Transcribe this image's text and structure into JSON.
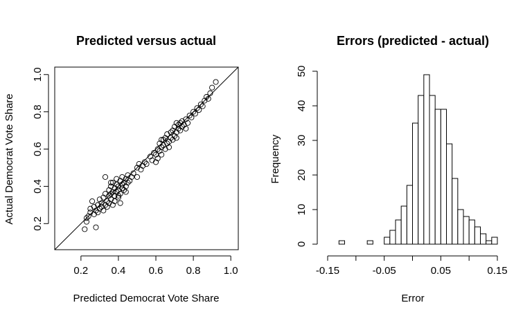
{
  "chart_data": [
    {
      "type": "scatter",
      "title": "Predicted versus actual",
      "xlabel": "Predicted Democrat Vote Share",
      "ylabel": "Actual Democrat Vote Share",
      "xlim": [
        0.06,
        1.04
      ],
      "ylim": [
        0.06,
        1.04
      ],
      "xticks": [
        "0.2",
        "0.4",
        "0.6",
        "0.8",
        "1.0"
      ],
      "yticks": [
        "0.2",
        "0.4",
        "0.6",
        "0.8",
        "1.0"
      ],
      "reference_line": "y = x",
      "points": [
        [
          0.22,
          0.17
        ],
        [
          0.23,
          0.21
        ],
        [
          0.23,
          0.23
        ],
        [
          0.24,
          0.24
        ],
        [
          0.25,
          0.26
        ],
        [
          0.25,
          0.28
        ],
        [
          0.26,
          0.32
        ],
        [
          0.27,
          0.25
        ],
        [
          0.27,
          0.29
        ],
        [
          0.28,
          0.18
        ],
        [
          0.28,
          0.27
        ],
        [
          0.29,
          0.3
        ],
        [
          0.29,
          0.26
        ],
        [
          0.3,
          0.28
        ],
        [
          0.3,
          0.33
        ],
        [
          0.31,
          0.29
        ],
        [
          0.31,
          0.31
        ],
        [
          0.32,
          0.34
        ],
        [
          0.32,
          0.27
        ],
        [
          0.33,
          0.45
        ],
        [
          0.33,
          0.3
        ],
        [
          0.33,
          0.36
        ],
        [
          0.34,
          0.32
        ],
        [
          0.34,
          0.29
        ],
        [
          0.35,
          0.35
        ],
        [
          0.35,
          0.38
        ],
        [
          0.35,
          0.31
        ],
        [
          0.36,
          0.33
        ],
        [
          0.36,
          0.4
        ],
        [
          0.36,
          0.36
        ],
        [
          0.37,
          0.3
        ],
        [
          0.37,
          0.37
        ],
        [
          0.37,
          0.42
        ],
        [
          0.38,
          0.35
        ],
        [
          0.38,
          0.39
        ],
        [
          0.38,
          0.32
        ],
        [
          0.39,
          0.41
        ],
        [
          0.39,
          0.37
        ],
        [
          0.39,
          0.44
        ],
        [
          0.4,
          0.34
        ],
        [
          0.4,
          0.4
        ],
        [
          0.4,
          0.38
        ],
        [
          0.41,
          0.43
        ],
        [
          0.41,
          0.36
        ],
        [
          0.41,
          0.31
        ],
        [
          0.42,
          0.41
        ],
        [
          0.42,
          0.39
        ],
        [
          0.42,
          0.45
        ],
        [
          0.43,
          0.42
        ],
        [
          0.43,
          0.38
        ],
        [
          0.44,
          0.44
        ],
        [
          0.44,
          0.4
        ],
        [
          0.45,
          0.46
        ],
        [
          0.45,
          0.42
        ],
        [
          0.46,
          0.43
        ],
        [
          0.47,
          0.45
        ],
        [
          0.48,
          0.47
        ],
        [
          0.5,
          0.5
        ],
        [
          0.5,
          0.45
        ],
        [
          0.51,
          0.52
        ],
        [
          0.52,
          0.49
        ],
        [
          0.53,
          0.51
        ],
        [
          0.54,
          0.53
        ],
        [
          0.55,
          0.52
        ],
        [
          0.57,
          0.56
        ],
        [
          0.59,
          0.58
        ],
        [
          0.6,
          0.57
        ],
        [
          0.61,
          0.6
        ],
        [
          0.61,
          0.55
        ],
        [
          0.62,
          0.63
        ],
        [
          0.62,
          0.59
        ],
        [
          0.63,
          0.61
        ],
        [
          0.63,
          0.57
        ],
        [
          0.64,
          0.65
        ],
        [
          0.64,
          0.62
        ],
        [
          0.65,
          0.6
        ],
        [
          0.65,
          0.66
        ],
        [
          0.66,
          0.63
        ],
        [
          0.66,
          0.68
        ],
        [
          0.67,
          0.64
        ],
        [
          0.67,
          0.61
        ],
        [
          0.68,
          0.66
        ],
        [
          0.68,
          0.69
        ],
        [
          0.69,
          0.65
        ],
        [
          0.69,
          0.7
        ],
        [
          0.7,
          0.67
        ],
        [
          0.7,
          0.72
        ],
        [
          0.71,
          0.69
        ],
        [
          0.71,
          0.66
        ],
        [
          0.72,
          0.71
        ],
        [
          0.72,
          0.73
        ],
        [
          0.73,
          0.7
        ],
        [
          0.73,
          0.74
        ],
        [
          0.74,
          0.72
        ],
        [
          0.74,
          0.75
        ],
        [
          0.75,
          0.73
        ],
        [
          0.76,
          0.76
        ],
        [
          0.77,
          0.74
        ],
        [
          0.78,
          0.78
        ],
        [
          0.79,
          0.77
        ],
        [
          0.8,
          0.8
        ],
        [
          0.81,
          0.79
        ],
        [
          0.82,
          0.82
        ],
        [
          0.83,
          0.81
        ],
        [
          0.84,
          0.84
        ],
        [
          0.85,
          0.83
        ],
        [
          0.86,
          0.86
        ],
        [
          0.87,
          0.88
        ],
        [
          0.88,
          0.87
        ],
        [
          0.89,
          0.9
        ],
        [
          0.9,
          0.93
        ],
        [
          0.92,
          0.96
        ],
        [
          0.36,
          0.42
        ],
        [
          0.4,
          0.35
        ],
        [
          0.44,
          0.37
        ],
        [
          0.58,
          0.54
        ],
        [
          0.6,
          0.53
        ],
        [
          0.63,
          0.65
        ],
        [
          0.76,
          0.71
        ],
        [
          0.71,
          0.74
        ]
      ]
    },
    {
      "type": "bar",
      "title": "Errors (predicted - actual)",
      "xlabel": "Error",
      "ylabel": "Frequency",
      "xlim": [
        -0.15,
        0.15
      ],
      "ylim": [
        0,
        50
      ],
      "xticks": [
        "-0.15",
        "-0.05",
        "0.05",
        "0.15"
      ],
      "yticks": [
        "0",
        "10",
        "20",
        "30",
        "40",
        "50"
      ],
      "bin_width": 0.01,
      "bin_start": -0.13,
      "counts": [
        1,
        0,
        0,
        0,
        0,
        1,
        0,
        0,
        2,
        4,
        7,
        11,
        17,
        35,
        43,
        49,
        43,
        39,
        39,
        29,
        19,
        10,
        8,
        7,
        5,
        3,
        1,
        2
      ]
    }
  ]
}
